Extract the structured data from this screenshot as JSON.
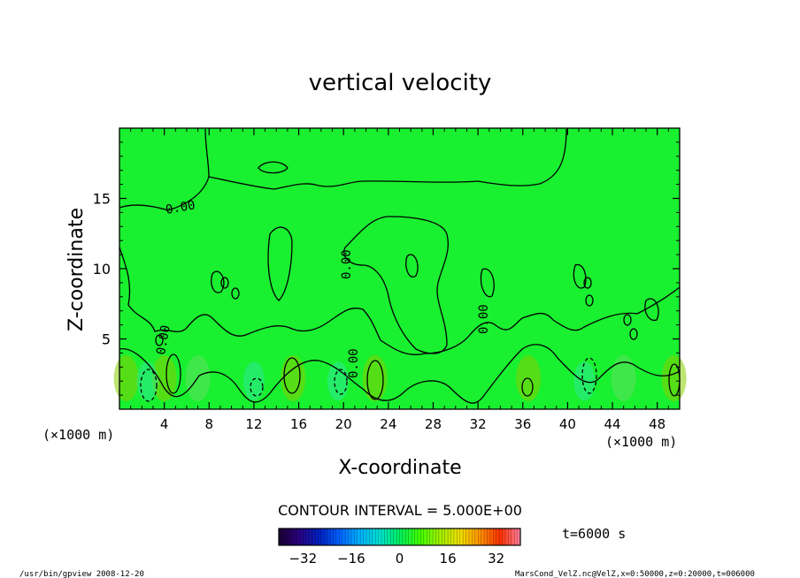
{
  "chart_data": {
    "type": "heatmap",
    "title": "vertical velocity",
    "xlabel": "X-coordinate",
    "ylabel": "Z-coordinate",
    "x_unit_left": "(×1000 m)",
    "x_unit_right": "(×1000 m)",
    "xlim": [
      0,
      50
    ],
    "ylim": [
      0,
      20
    ],
    "x_ticks": [
      4,
      8,
      12,
      16,
      20,
      24,
      28,
      32,
      36,
      40,
      44,
      48
    ],
    "y_ticks": [
      5,
      10,
      15
    ],
    "contour_interval_label": "CONTOUR INTERVAL = 5.000E+00",
    "contour_labels": [
      "0.00",
      "0.00",
      "0.00",
      "0.00",
      "0.00"
    ],
    "colorbar": {
      "min": -40,
      "max": 40,
      "ticks": [
        -32,
        -16,
        0,
        16,
        32
      ],
      "colors": [
        "#1a0030",
        "#2a0080",
        "#0020c0",
        "#0060ff",
        "#00b0ff",
        "#00e0d0",
        "#00f060",
        "#40ff00",
        "#a0f000",
        "#f0e000",
        "#ff9000",
        "#ff3000",
        "#ff80a0"
      ]
    },
    "background_color": "#19f030",
    "time_label": "t=6000 s"
  },
  "footer": {
    "left": "/usr/bin/gpview  2008-12-20",
    "right": "MarsCond_VelZ.nc@VelZ,x=0:50000,z=0:20000,t=006000"
  }
}
